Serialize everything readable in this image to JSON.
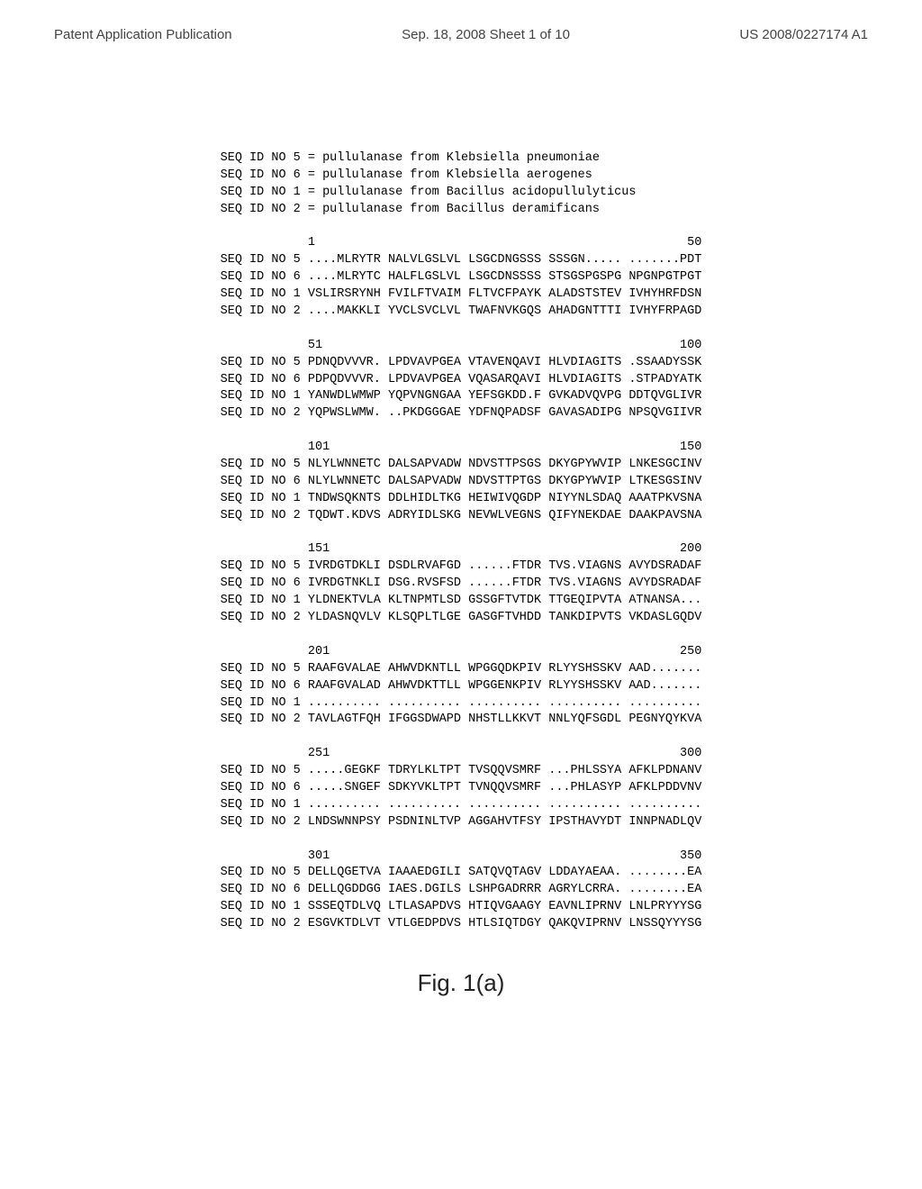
{
  "header": {
    "left": "Patent Application Publication",
    "center": "Sep. 18, 2008  Sheet 1 of 10",
    "right": "US 2008/0227174 A1"
  },
  "seqDefs": [
    "SEQ ID NO 5 = pullulanase from Klebsiella pneumoniae",
    "SEQ ID NO 6 = pullulanase from Klebsiella aerogenes",
    "SEQ ID NO 1 = pullulanase from Bacillus acidopullulyticus",
    "SEQ ID NO 2 = pullulanase from Bacillus deramificans"
  ],
  "alignmentBlocks": [
    {
      "start": "1",
      "end": "50",
      "rows": [
        {
          "id": "SEQ ID NO 5",
          "seq": "....MLRYTR NALVLGSLVL LSGCDNGSSS SSSGN..... .......PDT"
        },
        {
          "id": "SEQ ID NO 6",
          "seq": "....MLRYTC HALFLGSLVL LSGCDNSSSS STSGSPGSPG NPGNPGTPGT"
        },
        {
          "id": "SEQ ID NO 1",
          "seq": "VSLIRSRYNH FVILFTVAIM FLTVCFPAYK ALADSTSTEV IVHYHRFDSN"
        },
        {
          "id": "SEQ ID NO 2",
          "seq": "....MAKKLI YVCLSVCLVL TWAFNVKGQS AHADGNTTTI IVHYFRPAGD"
        }
      ]
    },
    {
      "start": "51",
      "end": "100",
      "rows": [
        {
          "id": "SEQ ID NO 5",
          "seq": "PDNQDVVVR. LPDVAVPGEA VTAVENQAVI HLVDIAGITS .SSAADYSSK"
        },
        {
          "id": "SEQ ID NO 6",
          "seq": "PDPQDVVVR. LPDVAVPGEA VQASARQAVI HLVDIAGITS .STPADYATK"
        },
        {
          "id": "SEQ ID NO 1",
          "seq": "YANWDLWMWP YQPVNGNGAA YEFSGKDD.F GVKADVQVPG DDTQVGLIVR"
        },
        {
          "id": "SEQ ID NO 2",
          "seq": "YQPWSLWMW. ..PKDGGGAE YDFNQPADSF GAVASADIPG NPSQVGIIVR"
        }
      ]
    },
    {
      "start": "101",
      "end": "150",
      "rows": [
        {
          "id": "SEQ ID NO 5",
          "seq": "NLYLWNNETC DALSAPVADW NDVSTTPSGS DKYGPYWVIP LNKESGCINV"
        },
        {
          "id": "SEQ ID NO 6",
          "seq": "NLYLWNNETC DALSAPVADW NDVSTTPTGS DKYGPYWVIP LTKESGSINV"
        },
        {
          "id": "SEQ ID NO 1",
          "seq": "TNDWSQKNTS DDLHIDLTKG HEIWIVQGDP NIYYNLSDAQ AAATPKVSNA"
        },
        {
          "id": "SEQ ID NO 2",
          "seq": "TQDWT.KDVS ADRYIDLSKG NEVWLVEGNS QIFYNEKDAE DAAKPAVSNA"
        }
      ]
    },
    {
      "start": "151",
      "end": "200",
      "rows": [
        {
          "id": "SEQ ID NO 5",
          "seq": "IVRDGTDKLI DSDLRVAFGD ......FTDR TVS.VIAGNS AVYDSRADAF"
        },
        {
          "id": "SEQ ID NO 6",
          "seq": "IVRDGTNKLI DSG.RVSFSD ......FTDR TVS.VIAGNS AVYDSRADAF"
        },
        {
          "id": "SEQ ID NO 1",
          "seq": "YLDNEKTVLA KLTNPMTLSD GSSGFTVTDK TTGEQIPVTA ATNANSA..."
        },
        {
          "id": "SEQ ID NO 2",
          "seq": "YLDASNQVLV KLSQPLTLGE GASGFTVHDD TANKDIPVTS VKDASLGQDV"
        }
      ]
    },
    {
      "start": "201",
      "end": "250",
      "rows": [
        {
          "id": "SEQ ID NO 5",
          "seq": "RAAFGVALAE AHWVDKNTLL WPGGQDKPIV RLYYSHSSKV AAD......."
        },
        {
          "id": "SEQ ID NO 6",
          "seq": "RAAFGVALAD AHWVDKTTLL WPGGENKPIV RLYYSHSSKV AAD......."
        },
        {
          "id": "SEQ ID NO 1",
          "seq": ".......... .......... .......... .......... .........."
        },
        {
          "id": "SEQ ID NO 2",
          "seq": "TAVLAGTFQH IFGGSDWAPD NHSTLLKKVT NNLYQFSGDL PEGNYQYKVA"
        }
      ]
    },
    {
      "start": "251",
      "end": "300",
      "rows": [
        {
          "id": "SEQ ID NO 5",
          "seq": ".....GEGKF TDRYLKLTPT TVSQQVSMRF ...PHLSSYA AFKLPDNANV"
        },
        {
          "id": "SEQ ID NO 6",
          "seq": ".....SNGEF SDKYVKLTPT TVNQQVSMRF ...PHLASYP AFKLPDDVNV"
        },
        {
          "id": "SEQ ID NO 1",
          "seq": ".......... .......... .......... .......... .........."
        },
        {
          "id": "SEQ ID NO 2",
          "seq": "LNDSWNNPSY PSDNINLTVP AGGAHVTFSY IPSTHAVYDT INNPNADLQV"
        }
      ]
    },
    {
      "start": "301",
      "end": "350",
      "rows": [
        {
          "id": "SEQ ID NO 5",
          "seq": "DELLQGETVA IAAAEDGILI SATQVQTAGV LDDAYAEAA. ........EA"
        },
        {
          "id": "SEQ ID NO 6",
          "seq": "DELLQGDDGG IAES.DGILS LSHPGADRRR AGRYLCRRA. ........EA"
        },
        {
          "id": "SEQ ID NO 1",
          "seq": "SSSEQTDLVQ LTLASAPDVS HTIQVGAAGY EAVNLIPRNV LNLPRYYYSG"
        },
        {
          "id": "SEQ ID NO 2",
          "seq": "ESGVKTDLVT VTLGEDPDVS HTLSIQTDGY QAKQVIPRNV LNSSQYYYSG"
        }
      ]
    }
  ],
  "figureLabel": "Fig. 1(a)",
  "style": {
    "monoFontSize": 13.5,
    "monoLineHeight": 1.4,
    "bgColor": "#ffffff",
    "textColor": "#000000",
    "figLabelSize": 26
  }
}
